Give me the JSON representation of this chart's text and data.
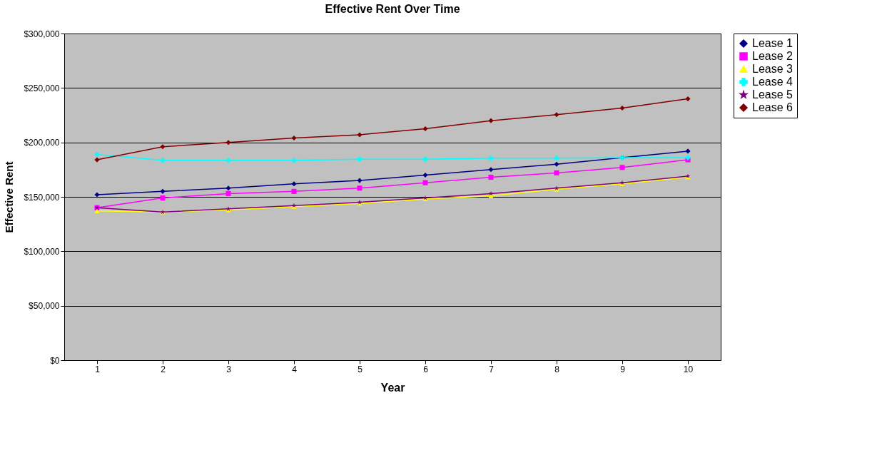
{
  "chart_data": {
    "type": "line",
    "title": "Effective Rent Over Time",
    "xlabel": "Year",
    "ylabel": "Effective Rent",
    "categories": [
      "1",
      "2",
      "3",
      "4",
      "5",
      "6",
      "7",
      "8",
      "9",
      "10"
    ],
    "ylim": [
      0,
      300000
    ],
    "yticks": [
      {
        "value": 0,
        "label": "$0"
      },
      {
        "value": 50000,
        "label": "$50,000"
      },
      {
        "value": 100000,
        "label": "$100,000"
      },
      {
        "value": 150000,
        "label": "$150,000"
      },
      {
        "value": 200000,
        "label": "$200,000"
      },
      {
        "value": 250000,
        "label": "$250,000"
      },
      {
        "value": 300000,
        "label": "$300,000"
      }
    ],
    "grid": "y",
    "legend": "right",
    "line_style": "solid",
    "series": [
      {
        "name": "Lease 1",
        "color": "#000080",
        "marker": "diamond",
        "values": [
          152000,
          155000,
          158000,
          162000,
          165000,
          170000,
          175000,
          180000,
          186000,
          192000
        ]
      },
      {
        "name": "Lease 2",
        "color": "#ff00ff",
        "marker": "square",
        "values": [
          140000,
          149000,
          153000,
          155000,
          158000,
          163000,
          168000,
          172000,
          177000,
          184000
        ]
      },
      {
        "name": "Lease 3",
        "color": "#ffff00",
        "marker": "triangle",
        "values": [
          137000,
          136000,
          138000,
          141000,
          144000,
          148000,
          151000,
          157000,
          162000,
          168000
        ]
      },
      {
        "name": "Lease 4",
        "color": "#00ffff",
        "marker": "cross",
        "values": [
          189000,
          183500,
          183500,
          183500,
          184500,
          184500,
          185500,
          185500,
          186000,
          186000
        ]
      },
      {
        "name": "Lease 5",
        "color": "#800080",
        "marker": "star",
        "values": [
          140000,
          136000,
          139000,
          142000,
          145000,
          149000,
          153000,
          158000,
          163000,
          169000
        ]
      },
      {
        "name": "Lease 6",
        "color": "#800000",
        "marker": "diamond",
        "values": [
          184000,
          196000,
          200000,
          204000,
          207000,
          212500,
          220000,
          225500,
          231500,
          240000
        ]
      }
    ]
  }
}
